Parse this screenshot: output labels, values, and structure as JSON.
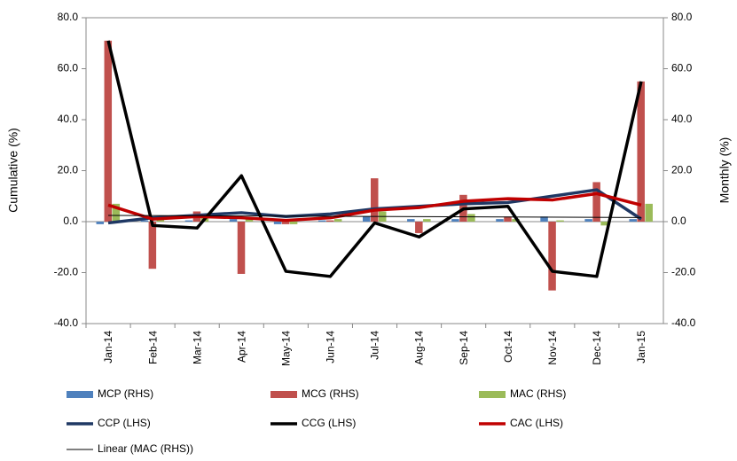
{
  "chart_data": {
    "type": "combo",
    "categories": [
      "Jan-14",
      "Feb-14",
      "Mar-14",
      "Apr-14",
      "May-14",
      "Jun-14",
      "Jul-14",
      "Aug-14",
      "Sep-14",
      "Oct-14",
      "Nov-14",
      "Dec-14",
      "Jan-15"
    ],
    "y_label": "Cumulative (%)",
    "y2_label": "Monthly (%)",
    "ylim": [
      -40,
      80
    ],
    "y2lim": [
      -40,
      80
    ],
    "yticks": [
      {
        "value": -40,
        "label": "-40.0"
      },
      {
        "value": -20,
        "label": "-20.0"
      },
      {
        "value": 0,
        "label": "0.0"
      },
      {
        "value": 20,
        "label": "20.0"
      },
      {
        "value": 40,
        "label": "40.0"
      },
      {
        "value": 60,
        "label": "60.0"
      },
      {
        "value": 80,
        "label": "80.0"
      }
    ],
    "y2ticks": [
      {
        "value": -40,
        "label": "-40.0"
      },
      {
        "value": -20,
        "label": "-20.0"
      },
      {
        "value": 0,
        "label": "0.0"
      },
      {
        "value": 20,
        "label": "20.0"
      },
      {
        "value": 40,
        "label": "40.0"
      },
      {
        "value": 60,
        "label": "60.0"
      },
      {
        "value": 80,
        "label": "80.0"
      }
    ],
    "series": [
      {
        "name": "MCP (RHS)",
        "kind": "bar",
        "axis": "y2",
        "color": "#4f81bd",
        "values": [
          -1,
          0.5,
          0.5,
          1,
          -1,
          0.5,
          2,
          1,
          1,
          1,
          2,
          1,
          1
        ]
      },
      {
        "name": "MCG (RHS)",
        "kind": "bar",
        "axis": "y2",
        "color": "#c0504d",
        "values": [
          71,
          -18.5,
          4,
          -20.5,
          -1,
          0.5,
          17,
          -4.5,
          10.5,
          2,
          -27,
          15.5,
          55
        ]
      },
      {
        "name": "MAC (RHS)",
        "kind": "bar",
        "axis": "y2",
        "color": "#9bbb59",
        "values": [
          7,
          1,
          2.5,
          1,
          -1,
          1,
          4,
          1,
          3,
          1,
          0.5,
          -1.5,
          7
        ]
      },
      {
        "name": "CCP (LHS)",
        "kind": "line",
        "color": "#1f3864",
        "values": [
          -0.5,
          1.5,
          2.5,
          3.5,
          2,
          3,
          5,
          6,
          7,
          7.5,
          10,
          12.5,
          1
        ]
      },
      {
        "name": "CCG (LHS)",
        "kind": "line",
        "color": "#000000",
        "values": [
          71,
          -1.5,
          -2.5,
          18,
          -19.5,
          -21.5,
          -0.5,
          -6,
          5,
          6,
          -19.5,
          -21.5,
          55
        ]
      },
      {
        "name": "CAC (LHS)",
        "kind": "line",
        "color": "#c00000",
        "values": [
          6.5,
          1,
          2,
          1.5,
          0.5,
          1.5,
          4.5,
          5.5,
          8,
          9,
          8.5,
          11,
          6.5
        ]
      },
      {
        "name": "Linear (MAC (RHS))",
        "kind": "trend",
        "of": 2,
        "axis": "y2",
        "color": "#000000"
      }
    ]
  }
}
